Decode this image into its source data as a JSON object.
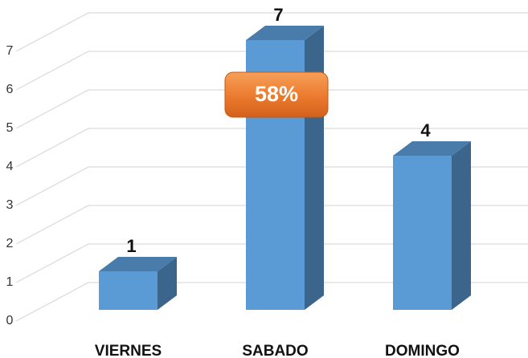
{
  "chart_data": {
    "type": "bar3d",
    "categories": [
      "VIERNES",
      "SABADO",
      "DOMINGO"
    ],
    "values": [
      1,
      7,
      4
    ],
    "color": "#5b9bd5",
    "ylim": [
      0,
      7
    ],
    "yticks": [
      0,
      1,
      2,
      3,
      4,
      5,
      6,
      7
    ],
    "grid": true,
    "annotation": "58%"
  }
}
